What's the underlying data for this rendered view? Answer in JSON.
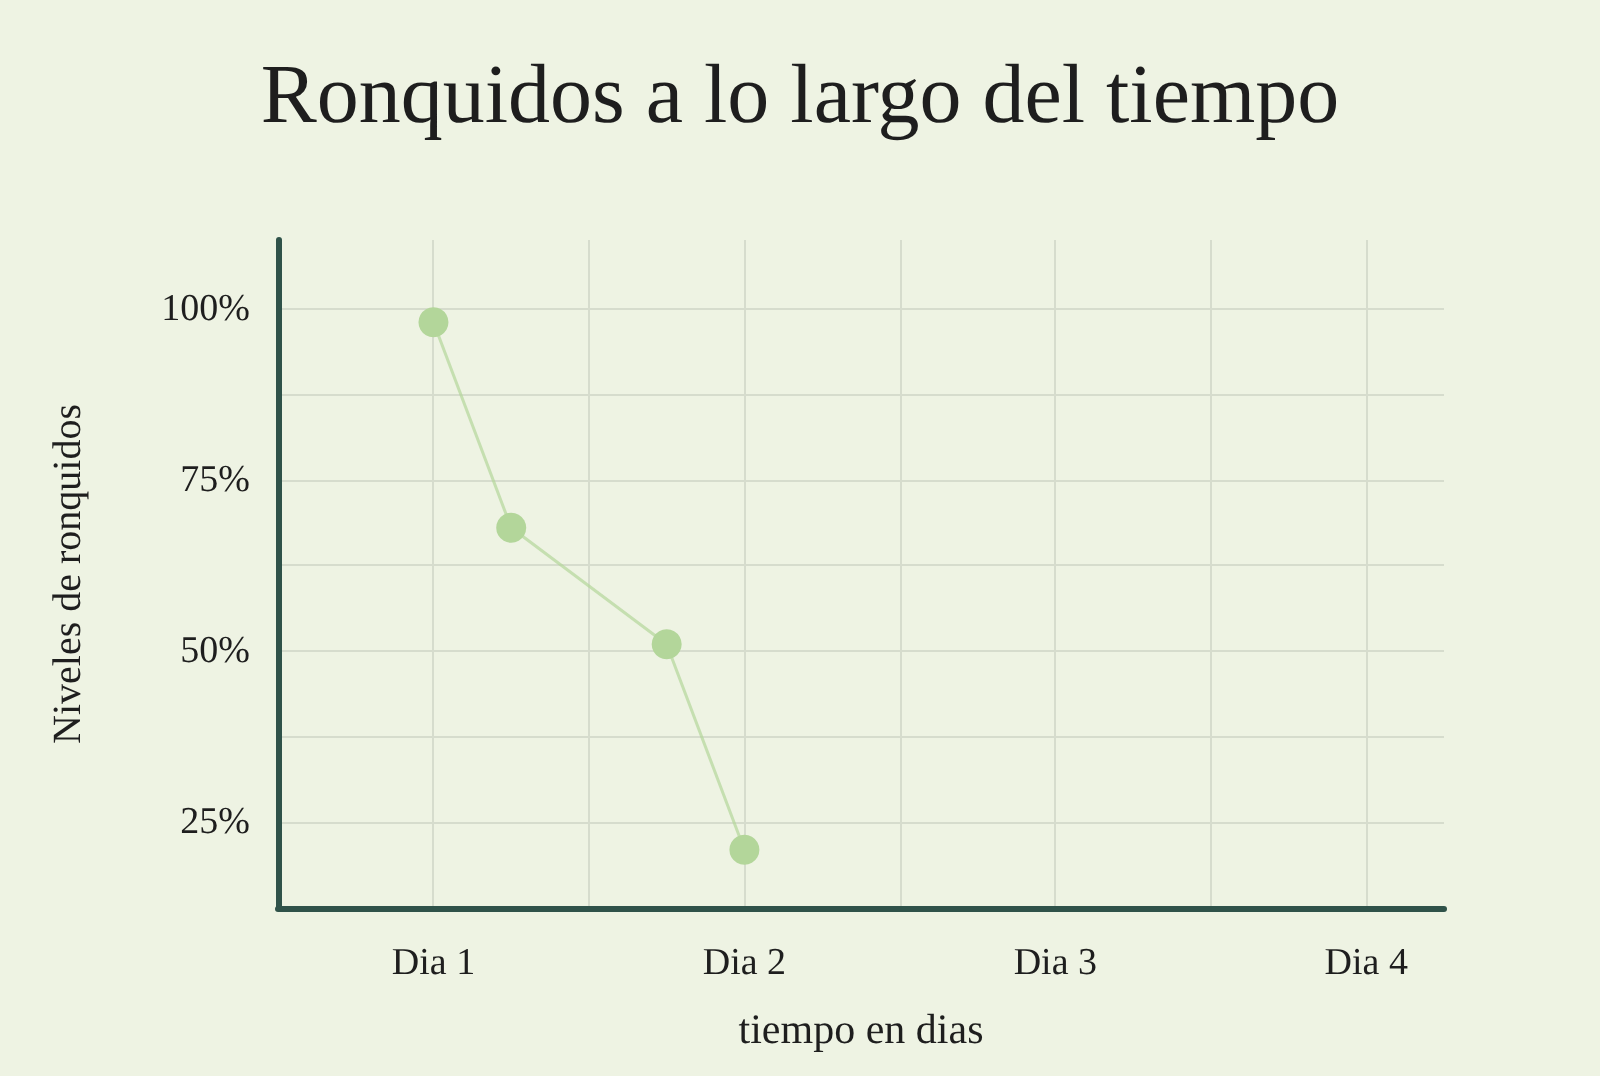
{
  "chart_data": {
    "type": "line",
    "title": "Ronquidos a lo largo del tiempo",
    "xlabel": "tiempo en dias",
    "ylabel": "Niveles de ronquidos",
    "categories": [
      null,
      null,
      "Dia 1",
      null,
      null,
      null,
      "Dia 2",
      null,
      null,
      null,
      "Dia 3",
      null,
      null,
      null,
      "Dia 4",
      null
    ],
    "series": [
      {
        "color": "#b3d69a",
        "values": [
          null,
          null,
          98,
          68,
          null,
          51,
          21,
          null,
          null,
          null,
          null,
          null,
          null,
          null,
          null,
          null
        ]
      }
    ],
    "ylim": [
      12.5,
      110
    ],
    "yticks": [
      {
        "value": 25,
        "label": "25%"
      },
      {
        "value": 37.5,
        "label": null
      },
      {
        "value": 50,
        "label": "50%"
      },
      {
        "value": 62.5,
        "label": null
      },
      {
        "value": 75,
        "label": "75%"
      },
      {
        "value": 87.5,
        "label": null
      },
      {
        "value": 100,
        "label": "100%"
      }
    ],
    "grid": true,
    "marker": "circle",
    "line_style": "solid"
  }
}
